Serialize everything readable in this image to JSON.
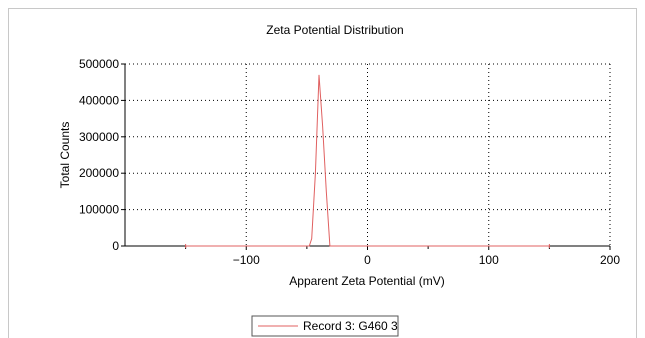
{
  "chart_data": {
    "type": "line",
    "title": "Zeta Potential Distribution",
    "xlabel": "Apparent Zeta Potential (mV)",
    "ylabel": "Total Counts",
    "xlim": [
      -200,
      200
    ],
    "ylim": [
      0,
      500000
    ],
    "xticks": [
      -100,
      0,
      100,
      200
    ],
    "yticks": [
      0,
      100000,
      200000,
      300000,
      400000,
      500000
    ],
    "grid": true,
    "legend_position": "bottom-center",
    "baseline_range": [
      -150,
      150
    ],
    "series": [
      {
        "name": "Record 3: G460 3",
        "color": "#e06060",
        "points": [
          [
            -150,
            0
          ],
          [
            -48,
            0
          ],
          [
            -46,
            20000
          ],
          [
            -43,
            200000
          ],
          [
            -40,
            470000
          ],
          [
            -37,
            330000
          ],
          [
            -34,
            150000
          ],
          [
            -31,
            0
          ],
          [
            150,
            0
          ]
        ]
      }
    ]
  }
}
